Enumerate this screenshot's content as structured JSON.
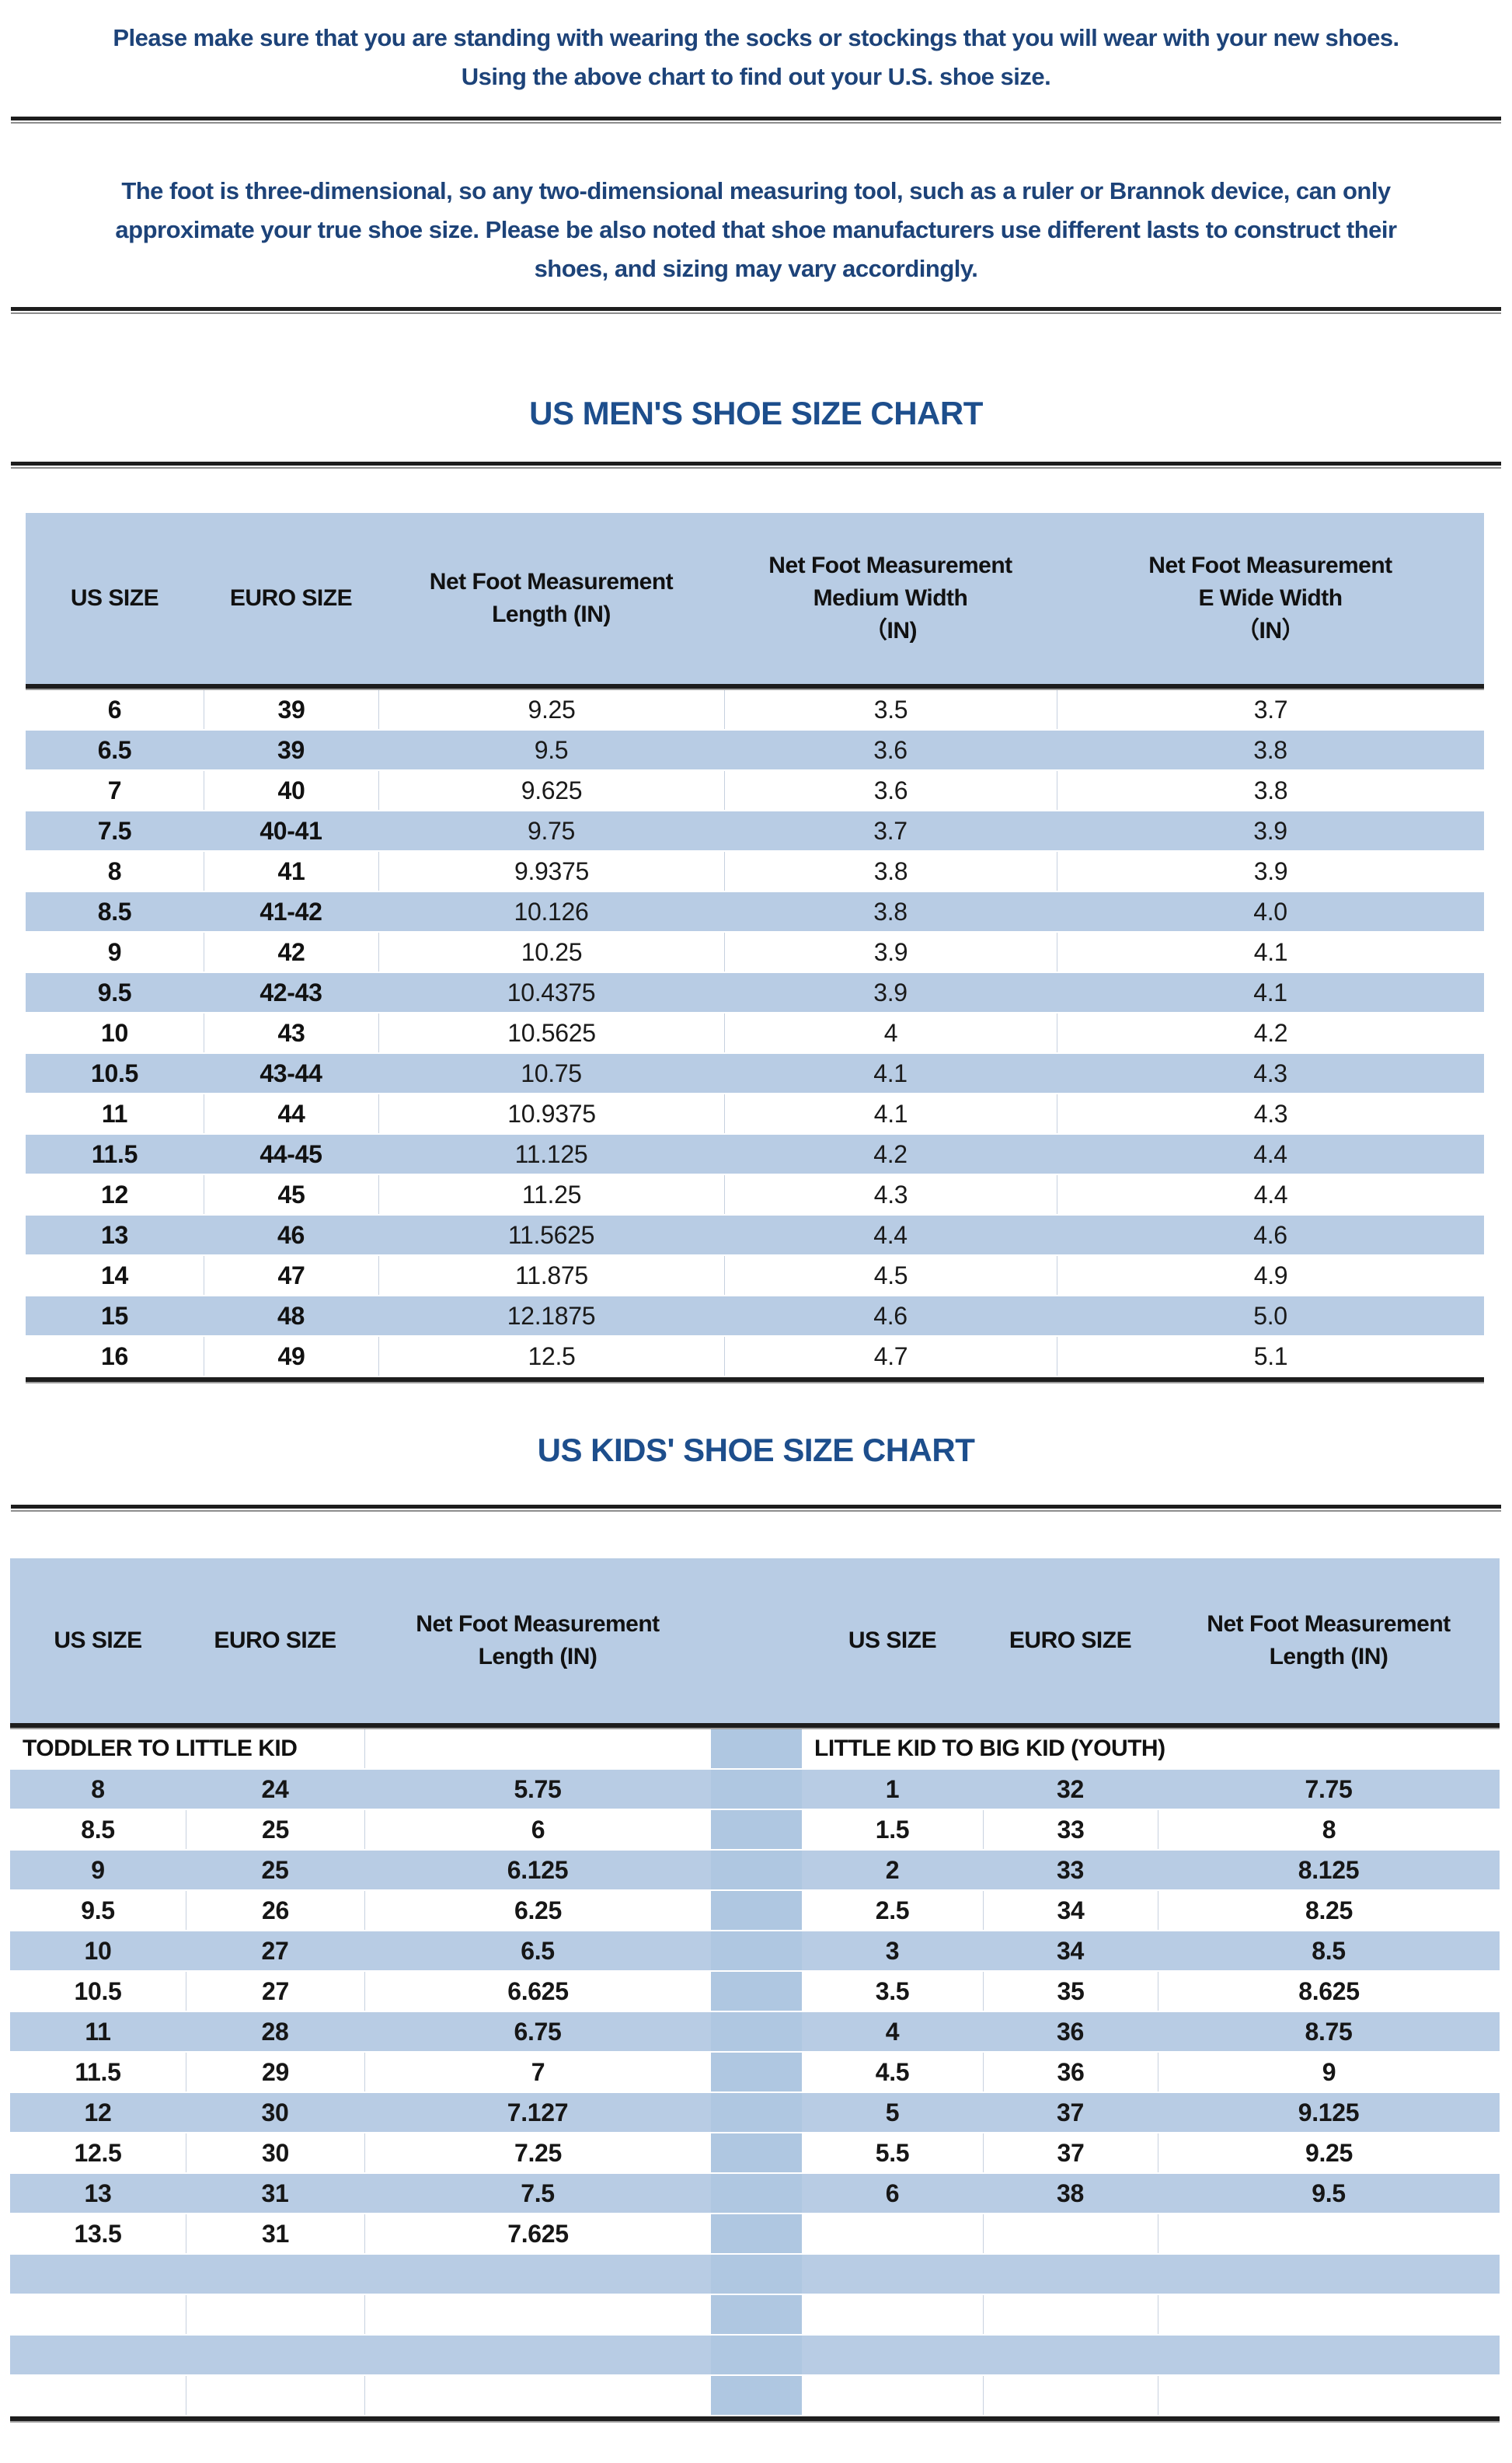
{
  "intro": {
    "paragraph1": "Please make sure that you are standing with wearing the socks or stockings that you will wear with your new shoes.\nUsing the above chart to find out your U.S. shoe size.",
    "paragraph2": "The foot is three-dimensional, so any two-dimensional measuring tool, such as a ruler or Brannok device, can only\napproximate your true shoe size. Please be also noted that shoe manufacturers use different lasts to construct their\nshoes, and sizing may vary accordingly."
  },
  "mens": {
    "title": "US MEN'S SHOE SIZE CHART",
    "columns": [
      "US SIZE",
      "EURO SIZE",
      "Net Foot Measurement\nLength (IN)",
      "Net Foot Measurement\nMedium Width\n（IN)",
      "Net Foot Measurement\nE Wide Width\n（IN）"
    ],
    "rows": [
      [
        "6",
        "39",
        "9.25",
        "3.5",
        "3.7"
      ],
      [
        "6.5",
        "39",
        "9.5",
        "3.6",
        "3.8"
      ],
      [
        "7",
        "40",
        "9.625",
        "3.6",
        "3.8"
      ],
      [
        "7.5",
        "40-41",
        "9.75",
        "3.7",
        "3.9"
      ],
      [
        "8",
        "41",
        "9.9375",
        "3.8",
        "3.9"
      ],
      [
        "8.5",
        "41-42",
        "10.126",
        "3.8",
        "4.0"
      ],
      [
        "9",
        "42",
        "10.25",
        "3.9",
        "4.1"
      ],
      [
        "9.5",
        "42-43",
        "10.4375",
        "3.9",
        "4.1"
      ],
      [
        "10",
        "43",
        "10.5625",
        "4",
        "4.2"
      ],
      [
        "10.5",
        "43-44",
        "10.75",
        "4.1",
        "4.3"
      ],
      [
        "11",
        "44",
        "10.9375",
        "4.1",
        "4.3"
      ],
      [
        "11.5",
        "44-45",
        "11.125",
        "4.2",
        "4.4"
      ],
      [
        "12",
        "45",
        "11.25",
        "4.3",
        "4.4"
      ],
      [
        "13",
        "46",
        "11.5625",
        "4.4",
        "4.6"
      ],
      [
        "14",
        "47",
        "11.875",
        "4.5",
        "4.9"
      ],
      [
        "15",
        "48",
        "12.1875",
        "4.6",
        "5.0"
      ],
      [
        "16",
        "49",
        "12.5",
        "4.7",
        "5.1"
      ]
    ]
  },
  "kids": {
    "title": "US KIDS' SHOE SIZE CHART",
    "left": {
      "section": "TODDLER TO LITTLE KID",
      "columns": [
        "US SIZE",
        "EURO SIZE",
        "Net Foot Measurement\nLength (IN)"
      ],
      "rows": [
        [
          "8",
          "24",
          "5.75"
        ],
        [
          "8.5",
          "25",
          "6"
        ],
        [
          "9",
          "25",
          "6.125"
        ],
        [
          "9.5",
          "26",
          "6.25"
        ],
        [
          "10",
          "27",
          "6.5"
        ],
        [
          "10.5",
          "27",
          "6.625"
        ],
        [
          "11",
          "28",
          "6.75"
        ],
        [
          "11.5",
          "29",
          "7"
        ],
        [
          "12",
          "30",
          "7.127"
        ],
        [
          "12.5",
          "30",
          "7.25"
        ],
        [
          "13",
          "31",
          "7.5"
        ],
        [
          "13.5",
          "31",
          "7.625"
        ],
        [
          "",
          "",
          ""
        ],
        [
          "",
          "",
          ""
        ],
        [
          "",
          "",
          ""
        ],
        [
          "",
          "",
          ""
        ]
      ]
    },
    "right": {
      "section": "LITTLE KID TO BIG KID (YOUTH)",
      "columns": [
        "US SIZE",
        "EURO SIZE",
        "Net Foot Measurement\nLength (IN)"
      ],
      "rows": [
        [
          "1",
          "32",
          "7.75"
        ],
        [
          "1.5",
          "33",
          "8"
        ],
        [
          "2",
          "33",
          "8.125"
        ],
        [
          "2.5",
          "34",
          "8.25"
        ],
        [
          "3",
          "34",
          "8.5"
        ],
        [
          "3.5",
          "35",
          "8.625"
        ],
        [
          "4",
          "36",
          "8.75"
        ],
        [
          "4.5",
          "36",
          "9"
        ],
        [
          "5",
          "37",
          "9.125"
        ],
        [
          "5.5",
          "37",
          "9.25"
        ],
        [
          "6",
          "38",
          "9.5"
        ],
        [
          "",
          "",
          ""
        ],
        [
          "",
          "",
          ""
        ],
        [
          "",
          "",
          ""
        ],
        [
          "",
          "",
          ""
        ],
        [
          "",
          "",
          ""
        ]
      ]
    }
  },
  "colors": {
    "row_blue": "#b8cce4",
    "spacer_blue": "#afc7e1",
    "cell_border": "#c7d1df",
    "title_blue": "#1d4e8c",
    "paragraph_blue": "#1d4379",
    "line_black": "#1d1d1d"
  }
}
